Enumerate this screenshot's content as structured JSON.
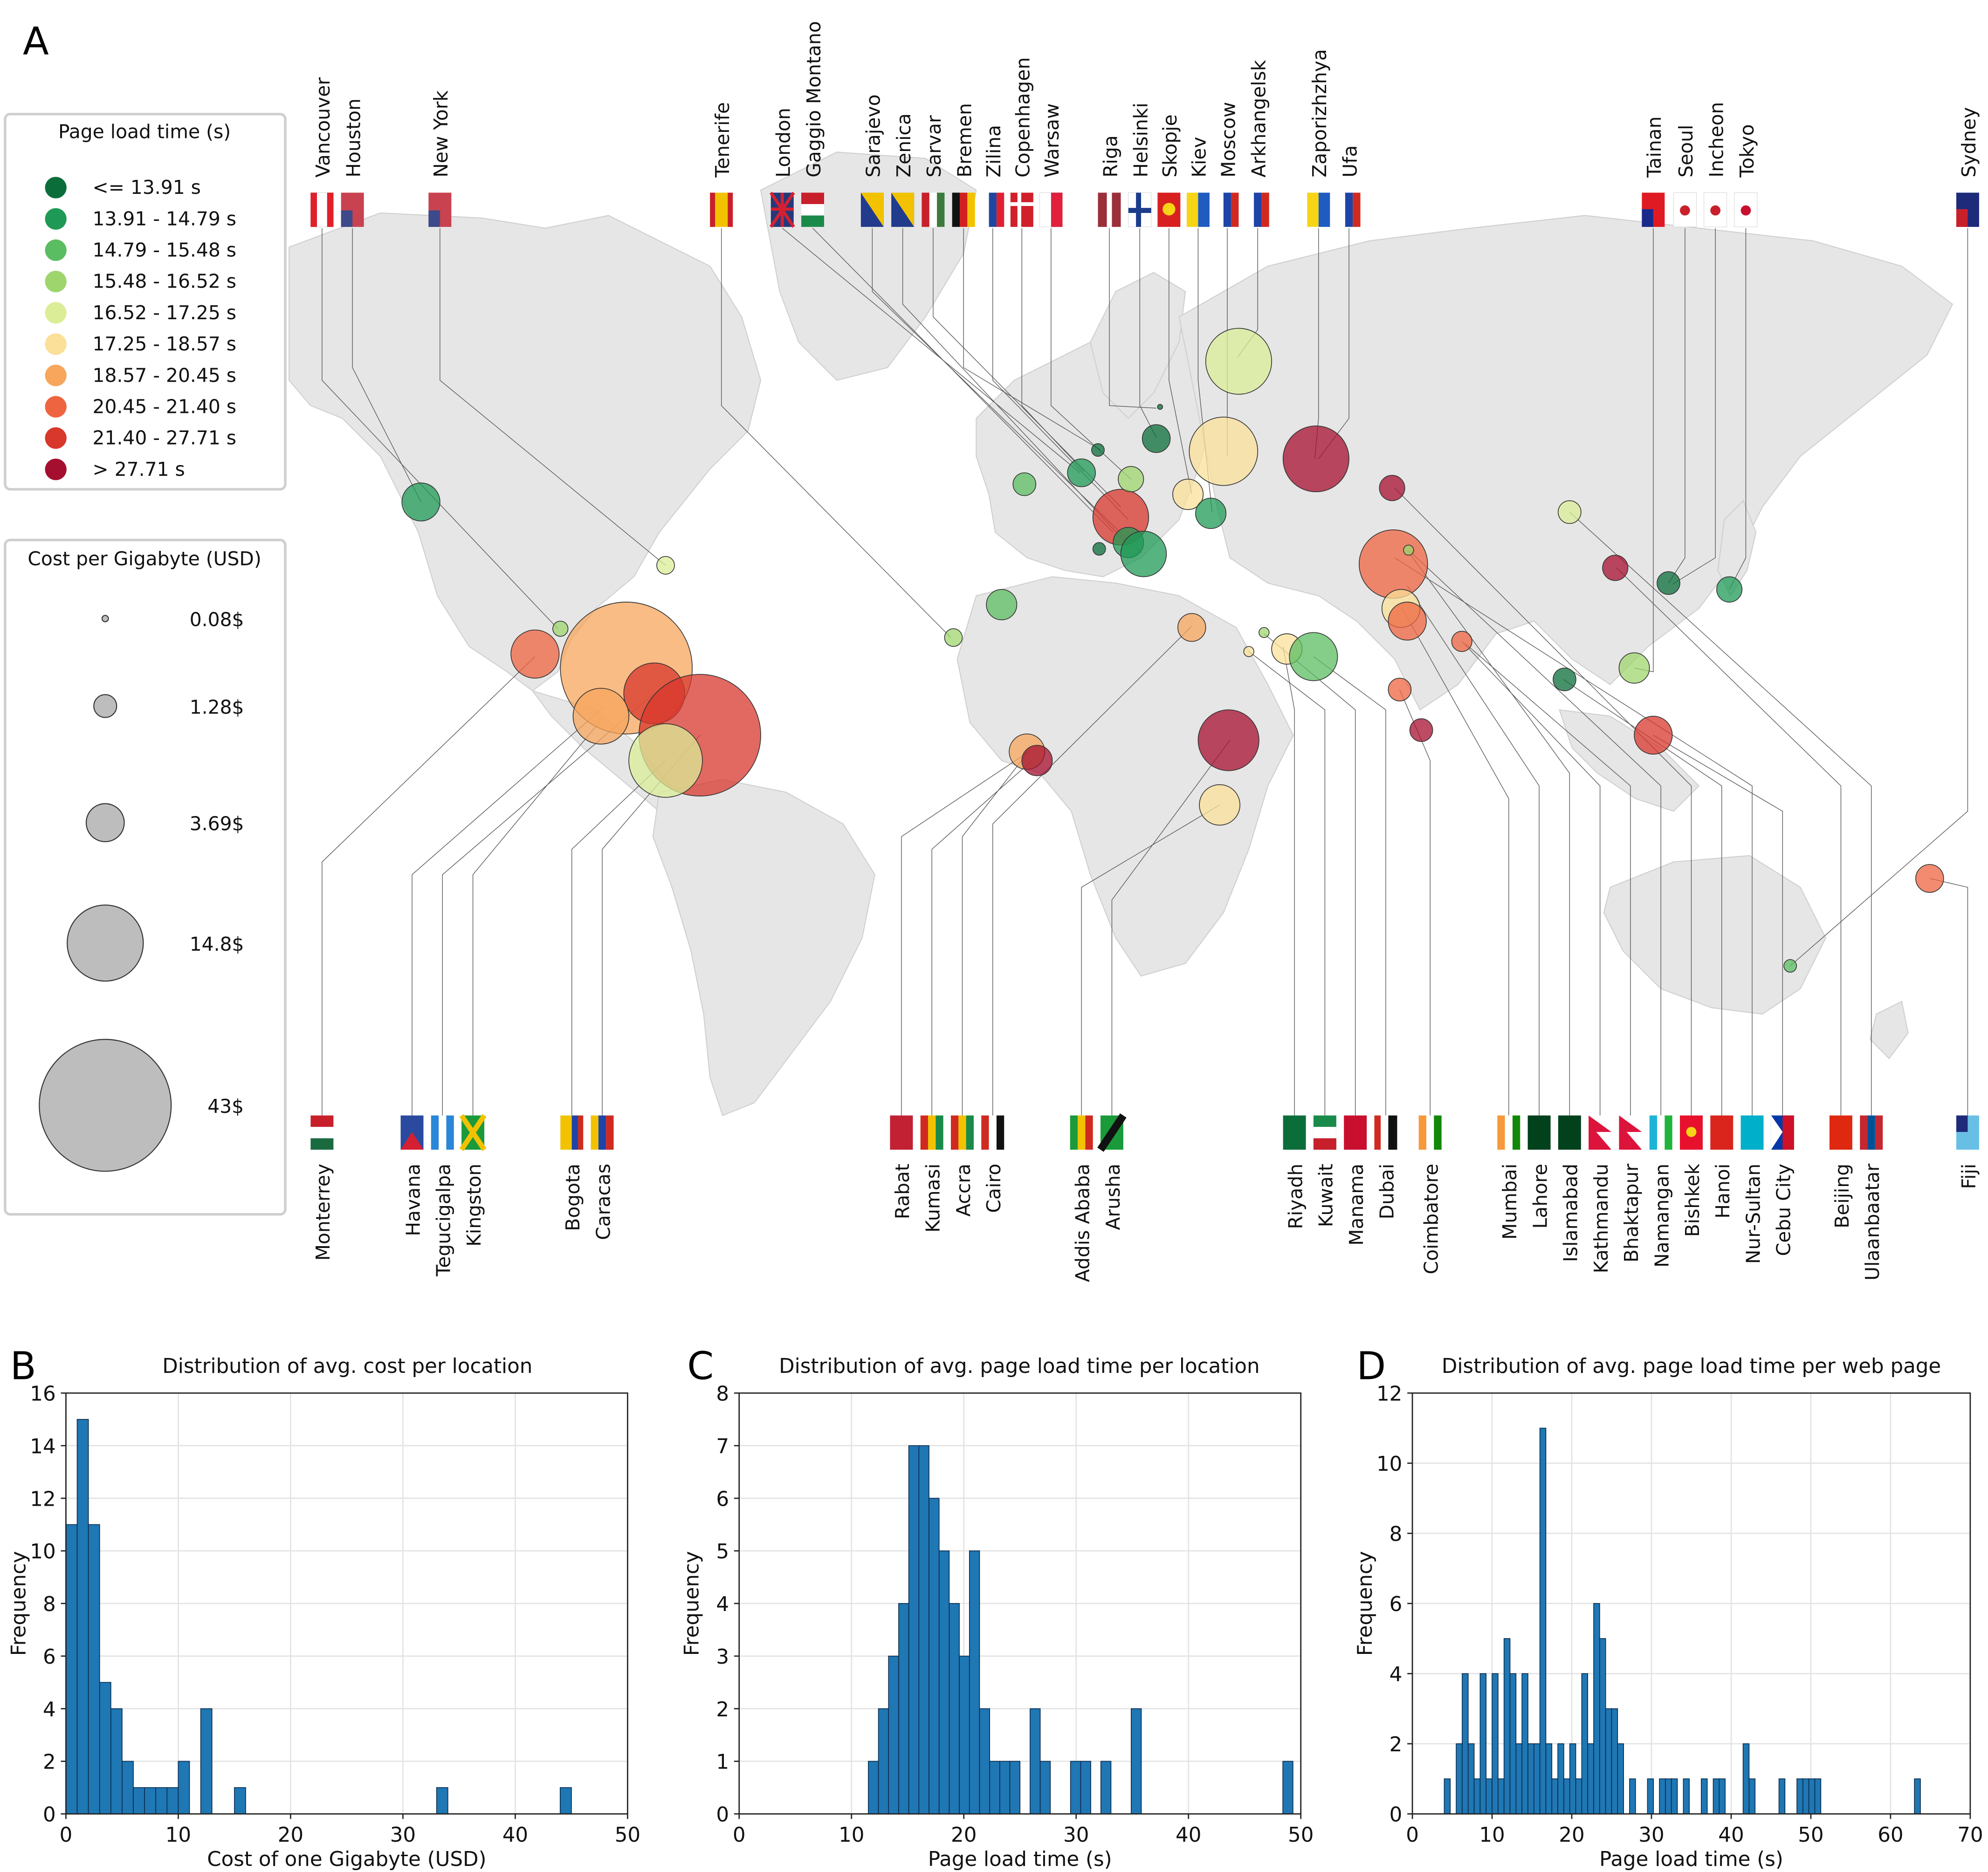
{
  "panel_labels": {
    "a": "A",
    "b": "B",
    "c": "C",
    "d": "D"
  },
  "colors": {
    "land": "#e6e6e6",
    "bar": "#1f77b4",
    "bins": [
      "#0b6e3a",
      "#1f9a56",
      "#5bbd62",
      "#9fd56d",
      "#dbee97",
      "#fbe09a",
      "#f7a65c",
      "#ee6440",
      "#d8372c",
      "#a50f2f"
    ]
  },
  "map": {
    "legend_color": {
      "title": "Page load time (s)",
      "items": [
        "<= 13.91 s",
        "13.91 - 14.79 s",
        "14.79 - 15.48 s",
        "15.48 - 16.52 s",
        "16.52 - 17.25 s",
        "17.25 - 18.57 s",
        "18.57 - 20.45 s",
        "20.45 - 21.40 s",
        "21.40 - 27.71 s",
        "> 27.71 s"
      ]
    },
    "legend_size": {
      "title": "Cost per Gigabyte (USD)",
      "items": [
        {
          "label": "0.08$",
          "value": 0.08
        },
        {
          "label": "1.28$",
          "value": 1.28
        },
        {
          "label": "3.69$",
          "value": 3.69
        },
        {
          "label": "14.8$",
          "value": 14.8
        },
        {
          "label": "43$",
          "value": 43
        }
      ]
    },
    "top_cities": [
      "Vancouver",
      "Houston",
      "New York",
      "Tenerife",
      "London",
      "Gaggio Montano",
      "Sarajevo",
      "Zenica",
      "Sarvar",
      "Bremen",
      "Zilina",
      "Copenhagen",
      "Warsaw",
      "Riga",
      "Helsinki",
      "Skopje",
      "Kiev",
      "Moscow",
      "Arkhangelsk",
      "Zaporizhzhya",
      "Ufa",
      "Tainan",
      "Seoul",
      "Incheon",
      "Tokyo",
      "Sydney"
    ],
    "bottom_cities": [
      "Monterrey",
      "Havana",
      "Tegucigalpa",
      "Kingston",
      "Bogota",
      "Caracas",
      "Rabat",
      "Kumasi",
      "Accra",
      "Cairo",
      "Addis Ababa",
      "Arusha",
      "Riyadh",
      "Kuwait",
      "Manama",
      "Dubai",
      "Coimbatore",
      "Mumbai",
      "Lahore",
      "Islamabad",
      "Kathmandu",
      "Bhaktapur",
      "Namangan",
      "Bishkek",
      "Hanoi",
      "Nur-Sultan",
      "Cebu City",
      "Beijing",
      "Ulaanbaatar",
      "Fiji"
    ]
  },
  "chart_data": [
    {
      "type": "bar",
      "panel": "B",
      "title": "Distribution of avg. cost per location",
      "xlabel": "Cost of one Gigabyte (USD)",
      "ylabel": "Frequency",
      "xlim": [
        0,
        50
      ],
      "ylim": [
        0,
        16
      ],
      "xticks": [
        0,
        10,
        20,
        30,
        40,
        50
      ],
      "yticks": [
        0,
        2,
        4,
        6,
        8,
        10,
        12,
        14,
        16
      ],
      "bin_width": 1.0,
      "bin_starts": [
        0,
        1,
        2,
        3,
        4,
        5,
        6,
        7,
        8,
        9,
        10,
        12,
        15,
        33,
        44
      ],
      "values": [
        11,
        15,
        11,
        5,
        4,
        2,
        1,
        1,
        1,
        1,
        2,
        4,
        1,
        1,
        1
      ]
    },
    {
      "type": "bar",
      "panel": "C",
      "title": "Distribution of avg. page load time per location",
      "xlabel": "Page load time (s)",
      "ylabel": "Frequency",
      "xlim": [
        0,
        50
      ],
      "ylim": [
        0,
        8
      ],
      "xticks": [
        0,
        10,
        20,
        30,
        40,
        50
      ],
      "yticks": [
        0,
        1,
        2,
        3,
        4,
        5,
        6,
        7,
        8
      ],
      "bin_width": 0.9,
      "bin_starts": [
        11.5,
        12.4,
        13.3,
        14.2,
        15.1,
        16.0,
        16.9,
        17.8,
        18.7,
        19.6,
        20.5,
        21.4,
        22.3,
        23.2,
        24.1,
        25.9,
        26.8,
        29.5,
        30.4,
        32.2,
        34.9,
        48.4
      ],
      "values": [
        1,
        2,
        3,
        4,
        7,
        7,
        6,
        5,
        4,
        3,
        5,
        2,
        1,
        1,
        1,
        2,
        1,
        1,
        1,
        1,
        2,
        1
      ]
    },
    {
      "type": "bar",
      "panel": "D",
      "title": "Distribution of avg. page load time per web page",
      "xlabel": "Page load time (s)",
      "ylabel": "Frequency",
      "xlim": [
        0,
        70
      ],
      "ylim": [
        0,
        12
      ],
      "xticks": [
        0,
        10,
        20,
        30,
        40,
        50,
        60,
        70
      ],
      "yticks": [
        0,
        2,
        4,
        6,
        8,
        10,
        12
      ],
      "bin_width": 0.75,
      "bin_starts": [
        4.0,
        5.5,
        6.25,
        7.0,
        7.75,
        8.5,
        9.25,
        10.0,
        10.75,
        11.5,
        12.25,
        13.0,
        13.75,
        14.5,
        15.25,
        16.0,
        16.75,
        17.5,
        18.25,
        19.0,
        19.75,
        20.5,
        21.25,
        22.0,
        22.75,
        23.5,
        24.25,
        25.0,
        25.75,
        27.25,
        29.5,
        31.0,
        31.75,
        32.5,
        34.0,
        36.25,
        37.75,
        38.5,
        41.5,
        42.25,
        46.0,
        48.25,
        49.0,
        49.75,
        50.5,
        63.0
      ],
      "values": [
        1,
        2,
        4,
        2,
        1,
        4,
        1,
        4,
        1,
        5,
        4,
        2,
        4,
        2,
        2,
        11,
        2,
        1,
        2,
        1,
        2,
        1,
        4,
        2,
        6,
        5,
        3,
        3,
        2,
        1,
        1,
        1,
        1,
        1,
        1,
        1,
        1,
        1,
        2,
        1,
        1,
        1,
        1,
        1,
        1,
        1
      ]
    }
  ]
}
